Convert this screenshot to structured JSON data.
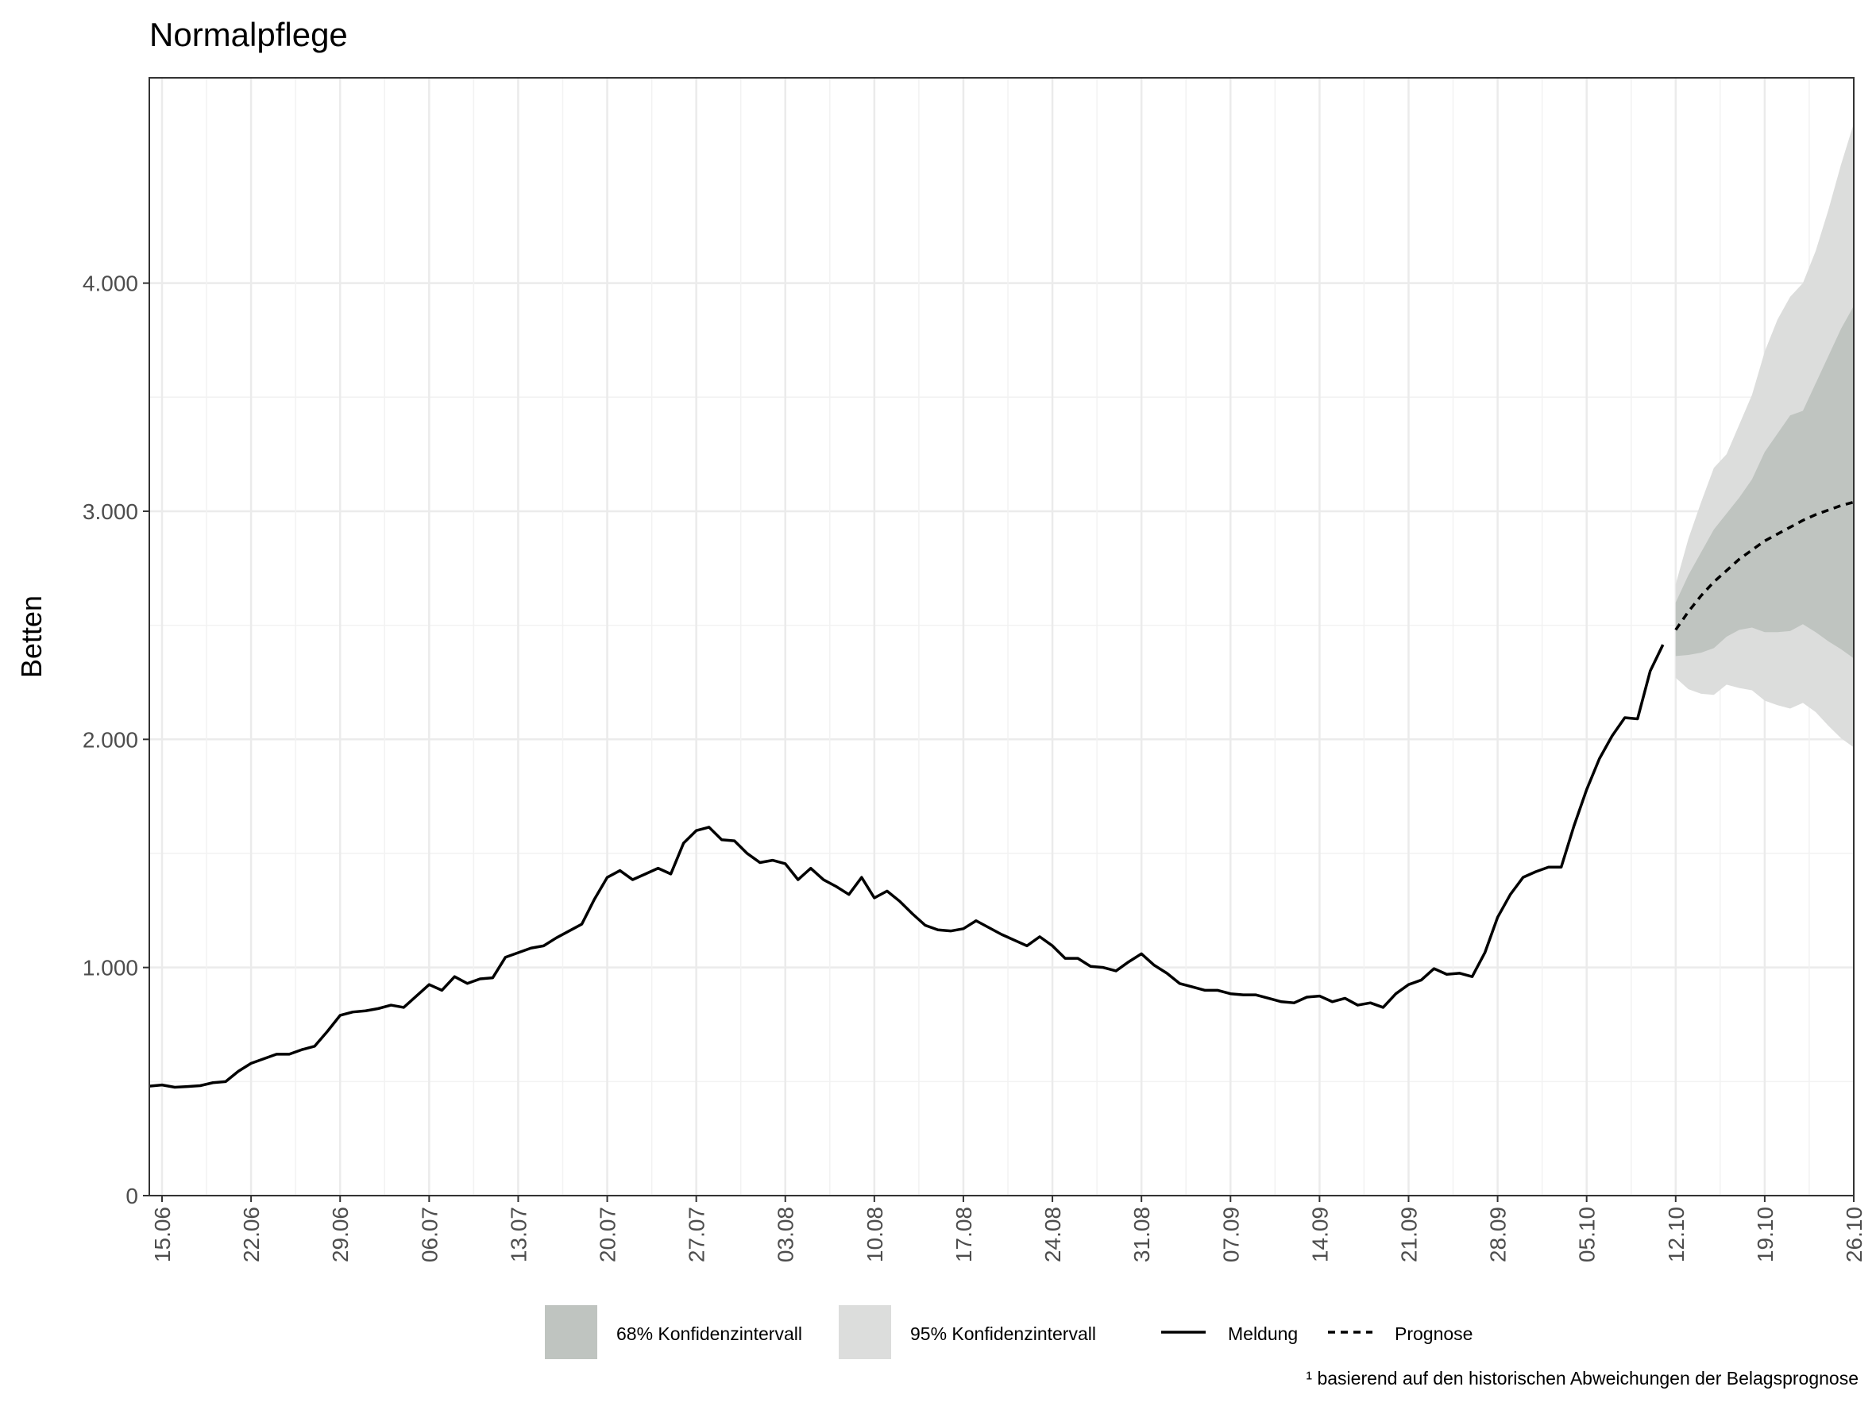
{
  "chart_data": {
    "type": "line",
    "title": "Normalpflege",
    "y_label": "Betten",
    "footnote": "¹ basierend auf den historischen Abweichungen der Belagsprognose",
    "grid": true,
    "categories": [
      null,
      "15.06",
      null,
      null,
      null,
      null,
      null,
      null,
      "22.06",
      null,
      null,
      null,
      null,
      null,
      null,
      "29.06",
      null,
      null,
      null,
      null,
      null,
      null,
      "06.07",
      null,
      null,
      null,
      null,
      null,
      null,
      "13.07",
      null,
      null,
      null,
      null,
      null,
      null,
      "20.07",
      null,
      null,
      null,
      null,
      null,
      null,
      "27.07",
      null,
      null,
      null,
      null,
      null,
      null,
      "03.08",
      null,
      null,
      null,
      null,
      null,
      null,
      "10.08",
      null,
      null,
      null,
      null,
      null,
      null,
      "17.08",
      null,
      null,
      null,
      null,
      null,
      null,
      "24.08",
      null,
      null,
      null,
      null,
      null,
      null,
      "31.08",
      null,
      null,
      null,
      null,
      null,
      null,
      "07.09",
      null,
      null,
      null,
      null,
      null,
      null,
      "14.09",
      null,
      null,
      null,
      null,
      null,
      null,
      "21.09",
      null,
      null,
      null,
      null,
      null,
      null,
      "28.09",
      null,
      null,
      null,
      null,
      null,
      null,
      "05.10",
      null,
      null,
      null,
      null,
      null,
      null,
      "12.10",
      null,
      null,
      null,
      null,
      null,
      null,
      "19.10",
      null,
      null,
      null,
      null,
      null,
      null,
      "26.10"
    ],
    "ylim": [
      0,
      4900
    ],
    "yticks": [
      0,
      {
        "value": 1000,
        "label": "1.000"
      },
      {
        "value": 2000,
        "label": "2.000"
      },
      {
        "value": 3000,
        "label": "3.000"
      },
      {
        "value": 4000,
        "label": "4.000"
      }
    ],
    "bands": [
      {
        "name": "95% Konfidenzintervall",
        "color": "#dcdddc",
        "lower": [
          null,
          null,
          null,
          null,
          null,
          null,
          null,
          null,
          null,
          null,
          null,
          null,
          null,
          null,
          null,
          null,
          null,
          null,
          null,
          null,
          null,
          null,
          null,
          null,
          null,
          null,
          null,
          null,
          null,
          null,
          null,
          null,
          null,
          null,
          null,
          null,
          null,
          null,
          null,
          null,
          null,
          null,
          null,
          null,
          null,
          null,
          null,
          null,
          null,
          null,
          null,
          null,
          null,
          null,
          null,
          null,
          null,
          null,
          null,
          null,
          null,
          null,
          null,
          null,
          null,
          null,
          null,
          null,
          null,
          null,
          null,
          null,
          null,
          null,
          null,
          null,
          null,
          null,
          null,
          null,
          null,
          null,
          null,
          null,
          null,
          null,
          null,
          null,
          null,
          null,
          null,
          null,
          null,
          null,
          null,
          null,
          null,
          null,
          null,
          null,
          null,
          null,
          null,
          null,
          null,
          null,
          null,
          null,
          null,
          null,
          null,
          null,
          null,
          null,
          null,
          null,
          null,
          null,
          null,
          null,
          2270,
          2220,
          2200,
          2195,
          2240,
          2225,
          2215,
          2170,
          2150,
          2135,
          2160,
          2120,
          2060,
          2005,
          1965
        ],
        "upper": [
          null,
          null,
          null,
          null,
          null,
          null,
          null,
          null,
          null,
          null,
          null,
          null,
          null,
          null,
          null,
          null,
          null,
          null,
          null,
          null,
          null,
          null,
          null,
          null,
          null,
          null,
          null,
          null,
          null,
          null,
          null,
          null,
          null,
          null,
          null,
          null,
          null,
          null,
          null,
          null,
          null,
          null,
          null,
          null,
          null,
          null,
          null,
          null,
          null,
          null,
          null,
          null,
          null,
          null,
          null,
          null,
          null,
          null,
          null,
          null,
          null,
          null,
          null,
          null,
          null,
          null,
          null,
          null,
          null,
          null,
          null,
          null,
          null,
          null,
          null,
          null,
          null,
          null,
          null,
          null,
          null,
          null,
          null,
          null,
          null,
          null,
          null,
          null,
          null,
          null,
          null,
          null,
          null,
          null,
          null,
          null,
          null,
          null,
          null,
          null,
          null,
          null,
          null,
          null,
          null,
          null,
          null,
          null,
          null,
          null,
          null,
          null,
          null,
          null,
          null,
          null,
          null,
          null,
          null,
          null,
          2680,
          2880,
          3040,
          3190,
          3250,
          3380,
          3510,
          3700,
          3840,
          3940,
          4000,
          4140,
          4320,
          4520,
          4700
        ]
      },
      {
        "name": "68% Konfidenzintervall",
        "color": "#bfc4c0",
        "lower": [
          null,
          null,
          null,
          null,
          null,
          null,
          null,
          null,
          null,
          null,
          null,
          null,
          null,
          null,
          null,
          null,
          null,
          null,
          null,
          null,
          null,
          null,
          null,
          null,
          null,
          null,
          null,
          null,
          null,
          null,
          null,
          null,
          null,
          null,
          null,
          null,
          null,
          null,
          null,
          null,
          null,
          null,
          null,
          null,
          null,
          null,
          null,
          null,
          null,
          null,
          null,
          null,
          null,
          null,
          null,
          null,
          null,
          null,
          null,
          null,
          null,
          null,
          null,
          null,
          null,
          null,
          null,
          null,
          null,
          null,
          null,
          null,
          null,
          null,
          null,
          null,
          null,
          null,
          null,
          null,
          null,
          null,
          null,
          null,
          null,
          null,
          null,
          null,
          null,
          null,
          null,
          null,
          null,
          null,
          null,
          null,
          null,
          null,
          null,
          null,
          null,
          null,
          null,
          null,
          null,
          null,
          null,
          null,
          null,
          null,
          null,
          null,
          null,
          null,
          null,
          null,
          null,
          null,
          null,
          null,
          2365,
          2370,
          2380,
          2400,
          2450,
          2480,
          2490,
          2470,
          2470,
          2475,
          2505,
          2470,
          2430,
          2395,
          2355
        ],
        "upper": [
          null,
          null,
          null,
          null,
          null,
          null,
          null,
          null,
          null,
          null,
          null,
          null,
          null,
          null,
          null,
          null,
          null,
          null,
          null,
          null,
          null,
          null,
          null,
          null,
          null,
          null,
          null,
          null,
          null,
          null,
          null,
          null,
          null,
          null,
          null,
          null,
          null,
          null,
          null,
          null,
          null,
          null,
          null,
          null,
          null,
          null,
          null,
          null,
          null,
          null,
          null,
          null,
          null,
          null,
          null,
          null,
          null,
          null,
          null,
          null,
          null,
          null,
          null,
          null,
          null,
          null,
          null,
          null,
          null,
          null,
          null,
          null,
          null,
          null,
          null,
          null,
          null,
          null,
          null,
          null,
          null,
          null,
          null,
          null,
          null,
          null,
          null,
          null,
          null,
          null,
          null,
          null,
          null,
          null,
          null,
          null,
          null,
          null,
          null,
          null,
          null,
          null,
          null,
          null,
          null,
          null,
          null,
          null,
          null,
          null,
          null,
          null,
          null,
          null,
          null,
          null,
          null,
          null,
          null,
          null,
          2600,
          2720,
          2820,
          2920,
          2990,
          3060,
          3140,
          3260,
          3340,
          3420,
          3440,
          3560,
          3680,
          3800,
          3900
        ]
      }
    ],
    "series": [
      {
        "name": "Meldung",
        "color": "#000000",
        "linestyle": "solid",
        "values": [
          480,
          485,
          475,
          478,
          482,
          495,
          500,
          545,
          580,
          600,
          620,
          620,
          640,
          655,
          720,
          790,
          805,
          810,
          820,
          835,
          825,
          875,
          925,
          900,
          960,
          930,
          950,
          955,
          1045,
          1065,
          1085,
          1095,
          1130,
          1160,
          1190,
          1300,
          1395,
          1425,
          1385,
          1410,
          1435,
          1410,
          1545,
          1600,
          1615,
          1560,
          1555,
          1500,
          1460,
          1470,
          1455,
          1385,
          1435,
          1385,
          1355,
          1320,
          1395,
          1305,
          1335,
          1290,
          1235,
          1185,
          1165,
          1160,
          1170,
          1205,
          1175,
          1145,
          1120,
          1095,
          1135,
          1095,
          1040,
          1040,
          1005,
          1000,
          985,
          1025,
          1060,
          1010,
          975,
          930,
          915,
          900,
          900,
          885,
          880,
          880,
          865,
          850,
          845,
          870,
          875,
          850,
          865,
          835,
          845,
          825,
          885,
          925,
          945,
          995,
          970,
          975,
          960,
          1065,
          1220,
          1320,
          1395,
          1420,
          1440,
          1440,
          1620,
          1780,
          1915,
          2015,
          2095,
          2090,
          2300,
          2415,
          null,
          null,
          null,
          null,
          null,
          null,
          null,
          null,
          null,
          null,
          null,
          null,
          null,
          null,
          null
        ]
      },
      {
        "name": "Prognose",
        "color": "#000000",
        "linestyle": "dashed",
        "values": [
          null,
          null,
          null,
          null,
          null,
          null,
          null,
          null,
          null,
          null,
          null,
          null,
          null,
          null,
          null,
          null,
          null,
          null,
          null,
          null,
          null,
          null,
          null,
          null,
          null,
          null,
          null,
          null,
          null,
          null,
          null,
          null,
          null,
          null,
          null,
          null,
          null,
          null,
          null,
          null,
          null,
          null,
          null,
          null,
          null,
          null,
          null,
          null,
          null,
          null,
          null,
          null,
          null,
          null,
          null,
          null,
          null,
          null,
          null,
          null,
          null,
          null,
          null,
          null,
          null,
          null,
          null,
          null,
          null,
          null,
          null,
          null,
          null,
          null,
          null,
          null,
          null,
          null,
          null,
          null,
          null,
          null,
          null,
          null,
          null,
          null,
          null,
          null,
          null,
          null,
          null,
          null,
          null,
          null,
          null,
          null,
          null,
          null,
          null,
          null,
          null,
          null,
          null,
          null,
          null,
          null,
          null,
          null,
          null,
          null,
          null,
          null,
          null,
          null,
          null,
          null,
          null,
          null,
          null,
          null,
          2480,
          2560,
          2630,
          2690,
          2740,
          2790,
          2830,
          2870,
          2900,
          2930,
          2960,
          2985,
          3005,
          3025,
          3040
        ]
      }
    ]
  }
}
